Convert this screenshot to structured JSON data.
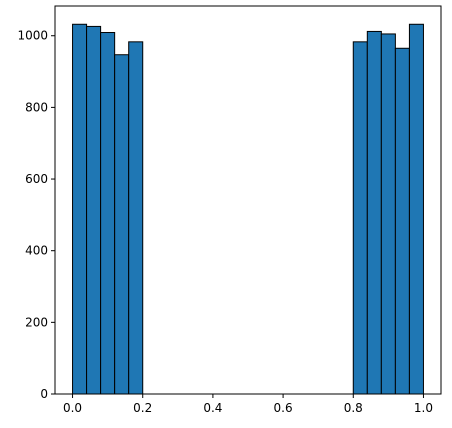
{
  "chart_data": {
    "type": "bar",
    "bin_edges": [
      0.0,
      0.04,
      0.08,
      0.12,
      0.16,
      0.2,
      0.24,
      0.28,
      0.32,
      0.36,
      0.4,
      0.44,
      0.48,
      0.52,
      0.56,
      0.6,
      0.64,
      0.68,
      0.72,
      0.76,
      0.8,
      0.84,
      0.88,
      0.92,
      0.96,
      1.0
    ],
    "values": [
      1032,
      1026,
      1009,
      947,
      983,
      0,
      0,
      0,
      0,
      0,
      0,
      0,
      0,
      0,
      0,
      0,
      0,
      0,
      0,
      0,
      983,
      1012,
      1005,
      965,
      1032
    ],
    "title": "",
    "xlabel": "",
    "ylabel": "",
    "xlim": [
      -0.05,
      1.05
    ],
    "ylim": [
      0,
      1083
    ],
    "xticks": [
      0.0,
      0.2,
      0.4,
      0.6,
      0.8,
      1.0
    ],
    "xtick_labels": [
      "0.0",
      "0.2",
      "0.4",
      "0.6",
      "0.8",
      "1.0"
    ],
    "yticks": [
      0,
      200,
      400,
      600,
      800,
      1000
    ],
    "ytick_labels": [
      "0",
      "200",
      "400",
      "600",
      "800",
      "1000"
    ],
    "grid": false,
    "legend": "none",
    "bar_color": "#1f77b4",
    "edge_color": "#000000"
  }
}
